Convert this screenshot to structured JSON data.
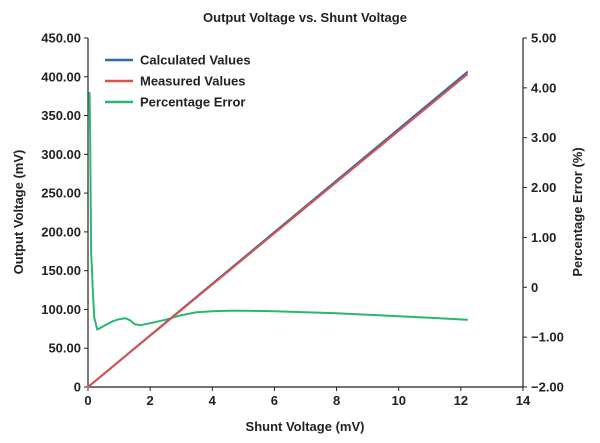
{
  "chart_data": {
    "type": "line",
    "title": "Output Voltage vs. Shunt Voltage",
    "xlabel": "Shunt Voltage (mV)",
    "ylabel": "Output Voltage (mV)",
    "y2label": "Percentage Error (%)",
    "xlim": [
      0,
      14
    ],
    "ylim": [
      0,
      450
    ],
    "y2lim": [
      -2,
      5
    ],
    "xticks": [
      0,
      2,
      4,
      6,
      8,
      10,
      12,
      14
    ],
    "xtick_labels": [
      "0",
      "2",
      "4",
      "6",
      "8",
      "10",
      "12",
      "14"
    ],
    "yticks": [
      0,
      50,
      100,
      150,
      200,
      250,
      300,
      350,
      400,
      450
    ],
    "ytick_labels": [
      "0",
      "50.00",
      "100.00",
      "150.00",
      "200.00",
      "250.00",
      "300.00",
      "350.00",
      "400.00",
      "450.00"
    ],
    "y2ticks": [
      -2,
      -1,
      0,
      1,
      2,
      3,
      4,
      5
    ],
    "y2tick_labels": [
      "−2.00",
      "−1.00",
      "0",
      "1.00",
      "2.00",
      "3.00",
      "4.00",
      "5.00"
    ],
    "grid": false,
    "legend_position": "top-left",
    "series": [
      {
        "name": "Calculated Values",
        "axis": "left",
        "color": "#2f6ea5",
        "x": [
          0,
          12.2
        ],
        "y": [
          0,
          406
        ]
      },
      {
        "name": "Measured Values",
        "axis": "left",
        "color": "#d9534f",
        "x": [
          0,
          12.2
        ],
        "y": [
          0,
          403
        ]
      },
      {
        "name": "Percentage Error",
        "axis": "right",
        "color": "#2bb673",
        "x": [
          0.05,
          0.07,
          0.09,
          0.1,
          0.12,
          0.15,
          0.2,
          0.3,
          0.5,
          0.8,
          1.0,
          1.2,
          1.35,
          1.5,
          1.7,
          2.0,
          2.5,
          3.0,
          3.5,
          4.0,
          4.5,
          5.0,
          6.0,
          7.0,
          8.0,
          9.0,
          10.0,
          11.0,
          12.2
        ],
        "y": [
          3.9,
          3.0,
          1.5,
          0.7,
          0.45,
          0.0,
          -0.6,
          -0.85,
          -0.78,
          -0.68,
          -0.64,
          -0.62,
          -0.66,
          -0.74,
          -0.76,
          -0.72,
          -0.65,
          -0.56,
          -0.5,
          -0.48,
          -0.47,
          -0.47,
          -0.48,
          -0.5,
          -0.52,
          -0.55,
          -0.58,
          -0.61,
          -0.65
        ]
      }
    ]
  }
}
